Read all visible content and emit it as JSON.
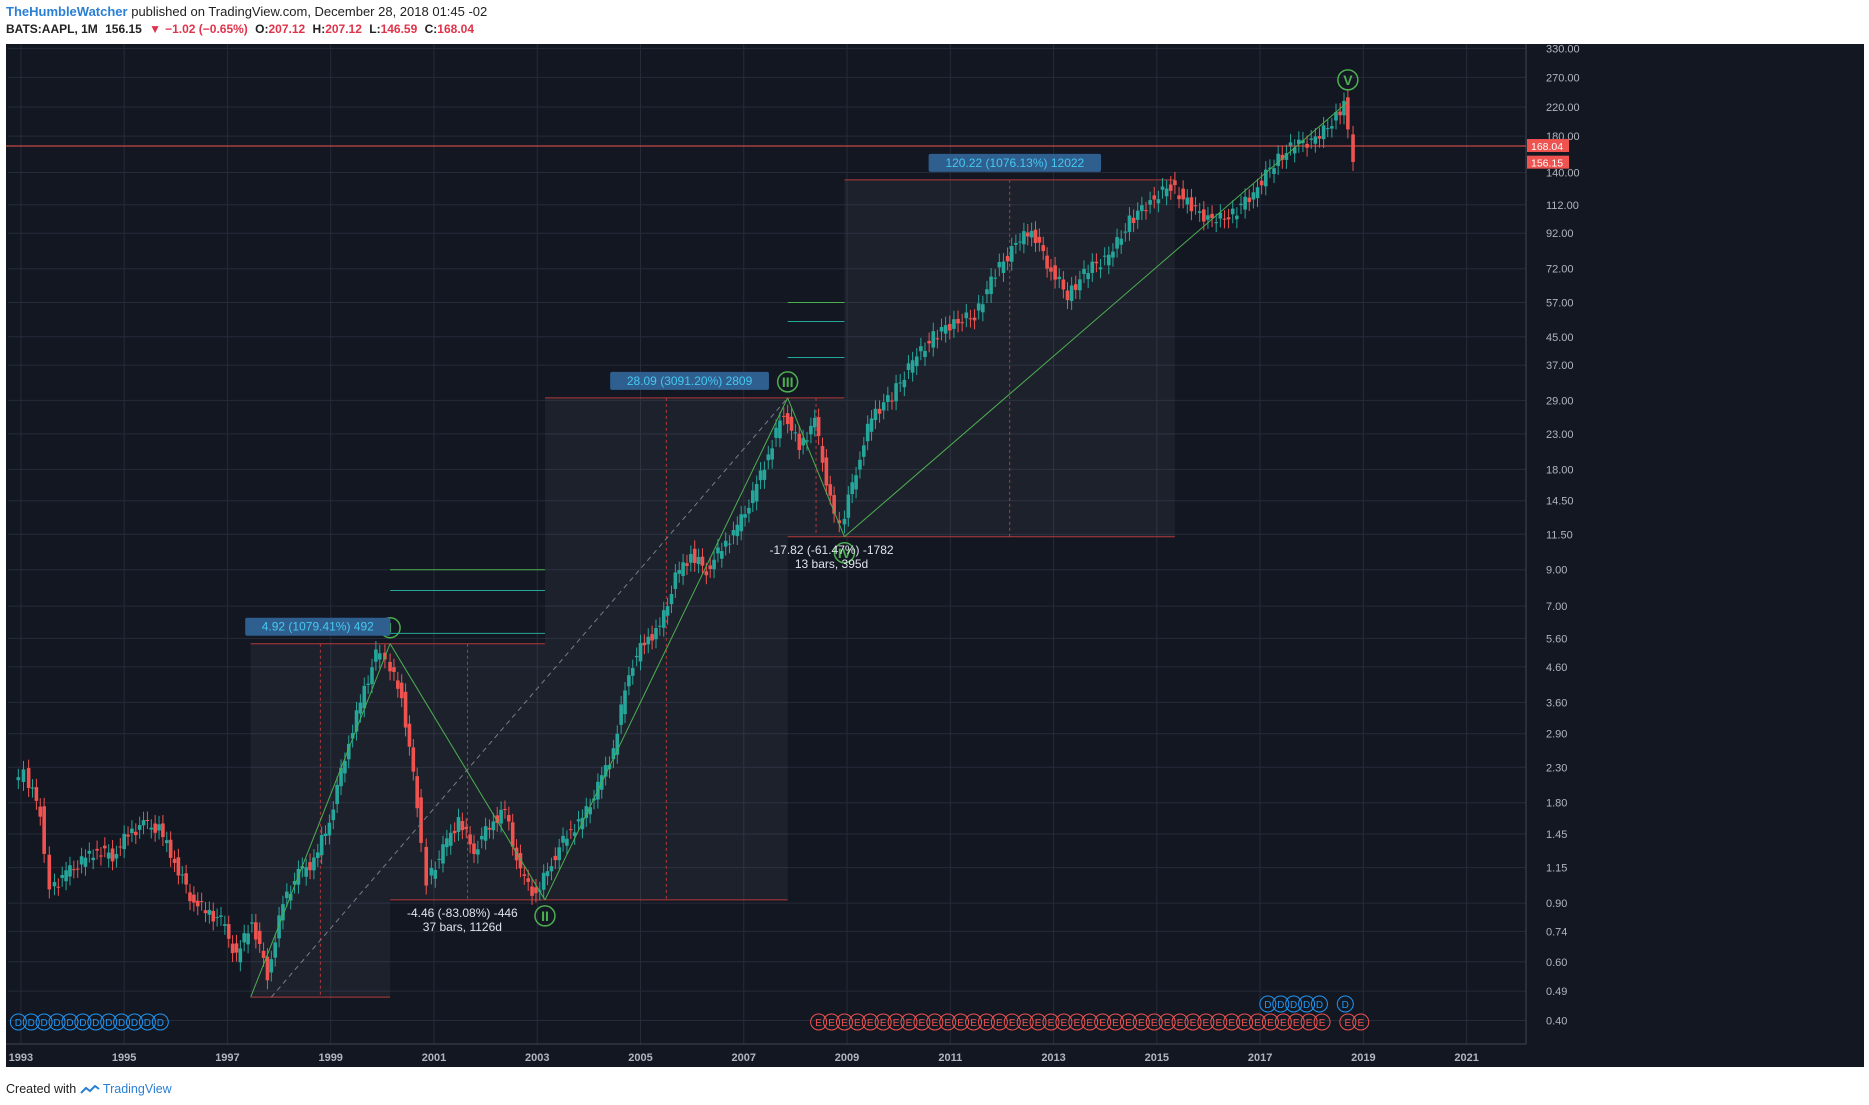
{
  "header": {
    "author": "TheHumbleWatcher",
    "published_text": "published on TradingView.com, December 28, 2018 01:45 -02",
    "symbol": "BATS:AAPL, 1M",
    "last": "156.15",
    "change": "−1.02 (−0.65%)",
    "o_label": "O:",
    "o": "207.12",
    "h_label": "H:",
    "h": "207.12",
    "l_label": "L:",
    "l": "146.59",
    "c_label": "C:",
    "c": "168.04"
  },
  "footer": {
    "created_with": "Created with",
    "brand": "TradingView"
  },
  "colors": {
    "background": "#131722",
    "up": "#26a69a",
    "down": "#ef5350",
    "wave": "#4caf50",
    "label_bg": "#2f5f8f",
    "label_text": "#46c8f0"
  },
  "chart_data": {
    "type": "candlestick",
    "scale": "log",
    "ylim": [
      0.34,
      340
    ],
    "xlim": [
      1992.8,
      2022.2
    ],
    "y_ticks": [
      "330.00",
      "270.00",
      "220.00",
      "180.00",
      "140.00",
      "112.00",
      "92.00",
      "72.00",
      "57.00",
      "45.00",
      "37.00",
      "29.00",
      "23.00",
      "18.00",
      "14.50",
      "11.50",
      "9.00",
      "7.00",
      "5.60",
      "4.60",
      "3.60",
      "2.90",
      "2.30",
      "1.80",
      "1.45",
      "1.15",
      "0.90",
      "0.74",
      "0.60",
      "0.49",
      "0.40"
    ],
    "x_ticks": [
      "1993",
      "1995",
      "1997",
      "1999",
      "2001",
      "2003",
      "2005",
      "2007",
      "2009",
      "2011",
      "2013",
      "2015",
      "2017",
      "2019",
      "2021"
    ],
    "price_tags": [
      {
        "value": "168.04"
      },
      {
        "value": "156.15"
      }
    ],
    "series": [
      {
        "name": "AAPL monthly close (approx.)",
        "points": [
          [
            1993.0,
            2.05
          ],
          [
            1993.2,
            2.2
          ],
          [
            1993.5,
            1.7
          ],
          [
            1993.7,
            1.0
          ],
          [
            1994.0,
            1.1
          ],
          [
            1994.3,
            1.2
          ],
          [
            1994.6,
            1.3
          ],
          [
            1994.9,
            1.25
          ],
          [
            1995.2,
            1.45
          ],
          [
            1995.5,
            1.55
          ],
          [
            1995.8,
            1.5
          ],
          [
            1996.1,
            1.2
          ],
          [
            1996.4,
            0.95
          ],
          [
            1996.7,
            0.85
          ],
          [
            1997.0,
            0.8
          ],
          [
            1997.3,
            0.62
          ],
          [
            1997.6,
            0.8
          ],
          [
            1997.9,
            0.55
          ],
          [
            1998.2,
            0.9
          ],
          [
            1998.5,
            1.1
          ],
          [
            1998.8,
            1.2
          ],
          [
            1999.1,
            1.6
          ],
          [
            1999.4,
            2.5
          ],
          [
            1999.7,
            3.6
          ],
          [
            2000.0,
            5.0
          ],
          [
            2000.2,
            4.8
          ],
          [
            2000.5,
            3.8
          ],
          [
            2000.8,
            1.8
          ],
          [
            2001.0,
            1.05
          ],
          [
            2001.3,
            1.3
          ],
          [
            2001.6,
            1.6
          ],
          [
            2001.9,
            1.3
          ],
          [
            2002.2,
            1.55
          ],
          [
            2002.5,
            1.7
          ],
          [
            2002.8,
            1.1
          ],
          [
            2003.1,
            0.95
          ],
          [
            2003.4,
            1.2
          ],
          [
            2003.7,
            1.45
          ],
          [
            2004.0,
            1.6
          ],
          [
            2004.3,
            2.0
          ],
          [
            2004.6,
            2.6
          ],
          [
            2004.9,
            4.5
          ],
          [
            2005.2,
            5.5
          ],
          [
            2005.5,
            6.0
          ],
          [
            2005.8,
            8.5
          ],
          [
            2006.1,
            10.0
          ],
          [
            2006.4,
            9.0
          ],
          [
            2006.7,
            10.5
          ],
          [
            2007.0,
            12.0
          ],
          [
            2007.3,
            15.0
          ],
          [
            2007.6,
            20.0
          ],
          [
            2007.9,
            27.0
          ],
          [
            2008.2,
            21.0
          ],
          [
            2008.5,
            25.0
          ],
          [
            2008.8,
            14.5
          ],
          [
            2009.0,
            12.0
          ],
          [
            2009.3,
            18.0
          ],
          [
            2009.6,
            26.0
          ],
          [
            2010.0,
            30.0
          ],
          [
            2010.4,
            38.0
          ],
          [
            2010.8,
            45.0
          ],
          [
            2011.2,
            50.0
          ],
          [
            2011.6,
            52.0
          ],
          [
            2012.0,
            70.0
          ],
          [
            2012.4,
            85.0
          ],
          [
            2012.7,
            95.0
          ],
          [
            2013.0,
            75.0
          ],
          [
            2013.4,
            60.0
          ],
          [
            2013.8,
            72.0
          ],
          [
            2014.2,
            78.0
          ],
          [
            2014.6,
            100.0
          ],
          [
            2015.0,
            115.0
          ],
          [
            2015.4,
            128.0
          ],
          [
            2015.8,
            110.0
          ],
          [
            2016.2,
            100.0
          ],
          [
            2016.6,
            105.0
          ],
          [
            2017.0,
            122.0
          ],
          [
            2017.4,
            150.0
          ],
          [
            2017.8,
            170.0
          ],
          [
            2018.2,
            175.0
          ],
          [
            2018.6,
            205.0
          ],
          [
            2018.75,
            228.0
          ],
          [
            2018.95,
            156.15
          ]
        ]
      }
    ],
    "measures": [
      {
        "label": "4.92 (1079.41%) 492"
      },
      {
        "label": "28.09 (3091.20%) 2809"
      },
      {
        "label": "120.22 (1076.13%) 12022"
      }
    ],
    "measure_notes": [
      {
        "line1": "-4.46 (-83.08%) -446",
        "line2": "37 bars, 1126d"
      },
      {
        "line1": "-17.82 (-61.47%) -1782",
        "line2": "13 bars, 395d"
      }
    ],
    "waves": [
      {
        "label": "I"
      },
      {
        "label": "II"
      },
      {
        "label": "III"
      },
      {
        "label": "IV"
      },
      {
        "label": "V"
      }
    ],
    "dividend_marker": "D",
    "earnings_marker": "E"
  }
}
